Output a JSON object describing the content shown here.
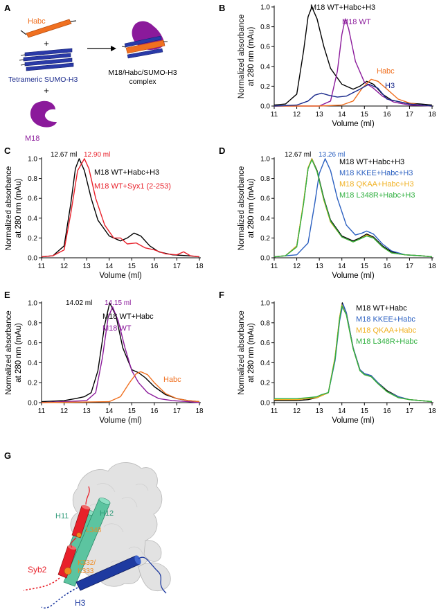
{
  "panel_a": {
    "label": "A",
    "habc": "Habc",
    "plus1": "+",
    "tetrameric": "Tetrameric SUMO-H3",
    "plus2": "+",
    "m18": "M18",
    "complex_line1": "M18/Habc/SUMO-H3",
    "complex_line2": "complex"
  },
  "panel_g": {
    "label": "G",
    "h11": "H11",
    "h12": "H12",
    "l348": "L348",
    "k332": "K332/",
    "k333": "K333",
    "syb2": "Syb2",
    "h3": "H3"
  },
  "colors": {
    "black": "#000000",
    "purple": "#8b1a9b",
    "orange": "#f07020",
    "navy": "#1a2a8c",
    "red": "#e8202a",
    "blue": "#2a5fc0",
    "yellow": "#f0b020",
    "green": "#30b040",
    "teal": "#5cc4a0",
    "darkred": "#c81818"
  },
  "chart_data": [
    {
      "panel": "B",
      "type": "line",
      "xlabel": "Volume (ml)",
      "ylabel_line1": "Normalized absorbance",
      "ylabel_line2": "at 280 nm (mAu)",
      "xlim": [
        11,
        18
      ],
      "ylim": [
        0,
        1.0
      ],
      "xticks": [
        "11",
        "12",
        "13",
        "14",
        "15",
        "16",
        "17",
        "18"
      ],
      "yticks": [
        "0.0",
        "0.2",
        "0.4",
        "0.6",
        "0.8",
        "1.0"
      ],
      "series": [
        {
          "name": "M18 WT+Habc+H3",
          "color": "#000000",
          "x": [
            11,
            11.5,
            12,
            12.3,
            12.5,
            12.67,
            12.9,
            13.2,
            13.5,
            14,
            14.5,
            14.8,
            15.1,
            15.4,
            15.8,
            16.2,
            16.8,
            17.5,
            18
          ],
          "y": [
            0.01,
            0.02,
            0.12,
            0.55,
            0.9,
            1.0,
            0.88,
            0.6,
            0.38,
            0.22,
            0.17,
            0.2,
            0.25,
            0.22,
            0.12,
            0.06,
            0.03,
            0.02,
            0.01
          ]
        },
        {
          "name": "M18 WT",
          "color": "#8b1a9b",
          "x": [
            11,
            13,
            13.5,
            13.8,
            14,
            14.15,
            14.3,
            14.6,
            15,
            15.4,
            15.8,
            16.3,
            17,
            18
          ],
          "y": [
            0,
            0,
            0.05,
            0.35,
            0.72,
            0.88,
            0.78,
            0.45,
            0.24,
            0.18,
            0.1,
            0.04,
            0.01,
            0
          ]
        },
        {
          "name": "Habc",
          "color": "#f07020",
          "x": [
            11,
            13,
            14,
            14.5,
            14.9,
            15.3,
            15.6,
            16,
            16.5,
            17,
            17.5,
            18
          ],
          "y": [
            0,
            0,
            0.01,
            0.05,
            0.18,
            0.27,
            0.25,
            0.17,
            0.07,
            0.03,
            0.01,
            0
          ]
        },
        {
          "name": "H3",
          "color": "#1a2a8c",
          "x": [
            11,
            12,
            12.5,
            12.8,
            13.1,
            13.4,
            13.8,
            14.2,
            14.8,
            15.2,
            15.6,
            16,
            17,
            18
          ],
          "y": [
            0,
            0.01,
            0.05,
            0.11,
            0.13,
            0.11,
            0.09,
            0.1,
            0.17,
            0.22,
            0.18,
            0.07,
            0.02,
            0
          ]
        }
      ],
      "legend": [
        {
          "text": "M18 WT+Habc+H3",
          "color": "#000000"
        },
        {
          "text": "M18 WT",
          "color": "#8b1a9b"
        },
        {
          "text": "Habc",
          "color": "#f07020"
        },
        {
          "text": "H3",
          "color": "#1a2a8c"
        }
      ]
    },
    {
      "panel": "C",
      "type": "line",
      "xlabel": "Volume (ml)",
      "ylabel_line1": "Normalized absorbance",
      "ylabel_line2": "at 280 nm (mAu)",
      "xlim": [
        11,
        18
      ],
      "ylim": [
        0,
        1.0
      ],
      "xticks": [
        "11",
        "12",
        "13",
        "14",
        "15",
        "16",
        "17",
        "18"
      ],
      "yticks": [
        "0.0",
        "0.2",
        "0.4",
        "0.6",
        "0.8",
        "1.0"
      ],
      "series": [
        {
          "name": "M18 WT+Habc+H3",
          "color": "#000000",
          "x": [
            11,
            11.5,
            12,
            12.3,
            12.5,
            12.67,
            12.9,
            13.2,
            13.5,
            14,
            14.5,
            14.8,
            15.1,
            15.4,
            15.8,
            16.2,
            16.8,
            17.5,
            18
          ],
          "y": [
            0.01,
            0.02,
            0.12,
            0.55,
            0.9,
            1.0,
            0.88,
            0.6,
            0.38,
            0.22,
            0.17,
            0.2,
            0.25,
            0.22,
            0.12,
            0.06,
            0.03,
            0.02,
            0.01
          ]
        },
        {
          "name": "M18 WT+Syx1 (2-253)",
          "color": "#e8202a",
          "x": [
            11,
            11.5,
            12,
            12.3,
            12.6,
            12.9,
            13.1,
            13.4,
            13.8,
            14.2,
            14.5,
            14.8,
            15.2,
            15.6,
            16,
            16.5,
            17,
            17.3,
            17.6,
            18
          ],
          "y": [
            0.01,
            0.02,
            0.08,
            0.45,
            0.88,
            1.0,
            0.9,
            0.6,
            0.33,
            0.2,
            0.2,
            0.14,
            0.15,
            0.1,
            0.08,
            0.04,
            0.03,
            0.06,
            0.02,
            0.01
          ]
        }
      ],
      "peak_labels": [
        {
          "text": "12.67 ml",
          "color": "#000000"
        },
        {
          "text": "12.90 ml",
          "color": "#e8202a"
        }
      ],
      "legend": [
        {
          "text": "M18 WT+Habc+H3",
          "color": "#000000"
        },
        {
          "text": "M18 WT+Syx1 (2-253)",
          "color": "#e8202a"
        }
      ]
    },
    {
      "panel": "D",
      "type": "line",
      "xlabel": "Volume (ml)",
      "ylabel_line1": "Normalized absorbance",
      "ylabel_line2": "at 280 nm (mAu)",
      "xlim": [
        11,
        18
      ],
      "ylim": [
        0,
        1.0
      ],
      "xticks": [
        "11",
        "12",
        "13",
        "14",
        "15",
        "16",
        "17",
        "18"
      ],
      "yticks": [
        "0.0",
        "0.2",
        "0.4",
        "0.6",
        "0.8",
        "1.0"
      ],
      "series": [
        {
          "name": "M18 WT+Habc+H3",
          "color": "#000000",
          "x": [
            11,
            11.5,
            12,
            12.3,
            12.5,
            12.67,
            12.9,
            13.2,
            13.5,
            14,
            14.5,
            14.8,
            15.1,
            15.4,
            15.8,
            16.2,
            16.8,
            17.5,
            18
          ],
          "y": [
            0.01,
            0.02,
            0.12,
            0.55,
            0.9,
            1.0,
            0.88,
            0.6,
            0.38,
            0.22,
            0.17,
            0.2,
            0.24,
            0.21,
            0.12,
            0.06,
            0.03,
            0.02,
            0.01
          ]
        },
        {
          "name": "M18 KKEE+Habc+H3",
          "color": "#2a5fc0",
          "x": [
            11,
            12,
            12.5,
            12.8,
            13.0,
            13.26,
            13.5,
            13.8,
            14.2,
            14.6,
            14.9,
            15.1,
            15.4,
            15.8,
            16.2,
            16.8,
            17.5,
            18
          ],
          "y": [
            0.01,
            0.03,
            0.15,
            0.55,
            0.85,
            1.0,
            0.88,
            0.6,
            0.33,
            0.23,
            0.25,
            0.27,
            0.24,
            0.14,
            0.07,
            0.03,
            0.02,
            0.01
          ]
        },
        {
          "name": "M18 QKAA+Habc+H3",
          "color": "#f0b020",
          "x": [
            11,
            11.5,
            12,
            12.3,
            12.5,
            12.67,
            12.9,
            13.2,
            13.5,
            14,
            14.5,
            14.8,
            15.1,
            15.4,
            15.8,
            16.2,
            16.8,
            17.5,
            18
          ],
          "y": [
            0.01,
            0.02,
            0.12,
            0.56,
            0.91,
            1.0,
            0.87,
            0.58,
            0.36,
            0.21,
            0.16,
            0.19,
            0.23,
            0.2,
            0.11,
            0.05,
            0.03,
            0.02,
            0.01
          ]
        },
        {
          "name": "M18 L348R+Habc+H3",
          "color": "#30b040",
          "x": [
            11,
            11.5,
            12,
            12.3,
            12.5,
            12.67,
            12.9,
            13.2,
            13.5,
            14,
            14.5,
            14.8,
            15.1,
            15.4,
            15.8,
            16.2,
            16.8,
            17.5,
            18
          ],
          "y": [
            0.01,
            0.02,
            0.11,
            0.54,
            0.9,
            0.99,
            0.87,
            0.59,
            0.37,
            0.21,
            0.16,
            0.19,
            0.22,
            0.2,
            0.11,
            0.05,
            0.03,
            0.02,
            0.01
          ]
        }
      ],
      "peak_labels": [
        {
          "text": "12.67 ml",
          "color": "#000000"
        },
        {
          "text": "13.26 ml",
          "color": "#2a5fc0"
        }
      ],
      "legend": [
        {
          "text": "M18 WT+Habc+H3",
          "color": "#000000"
        },
        {
          "text": "M18 KKEE+Habc+H3",
          "color": "#2a5fc0"
        },
        {
          "text": "M18 QKAA+Habc+H3",
          "color": "#f0b020"
        },
        {
          "text": "M18 L348R+Habc+H3",
          "color": "#30b040"
        }
      ]
    },
    {
      "panel": "E",
      "type": "line",
      "xlabel": "Volume (ml)",
      "ylabel_line1": "Normalized absorbance",
      "ylabel_line2": "at 280 nm (mAu)",
      "xlim": [
        11,
        18
      ],
      "ylim": [
        0,
        1.0
      ],
      "xticks": [
        "11",
        "12",
        "13",
        "14",
        "15",
        "16",
        "17",
        "18"
      ],
      "yticks": [
        "0.0",
        "0.2",
        "0.4",
        "0.6",
        "0.8",
        "1.0"
      ],
      "series": [
        {
          "name": "M18 WT+Habc",
          "color": "#000000",
          "x": [
            11,
            12,
            12.5,
            12.9,
            13.2,
            13.5,
            13.8,
            14.02,
            14.3,
            14.6,
            15,
            15.3,
            15.6,
            16,
            16.5,
            17,
            17.5,
            18
          ],
          "y": [
            0.01,
            0.02,
            0.04,
            0.06,
            0.1,
            0.32,
            0.78,
            1.0,
            0.87,
            0.55,
            0.33,
            0.3,
            0.25,
            0.16,
            0.08,
            0.04,
            0.02,
            0.01
          ]
        },
        {
          "name": "M18 WT",
          "color": "#8b1a9b",
          "x": [
            11,
            13,
            13.4,
            13.7,
            13.95,
            14.15,
            14.4,
            14.7,
            15,
            15.3,
            15.7,
            16.2,
            16.8,
            17.5,
            18
          ],
          "y": [
            0,
            0.02,
            0.1,
            0.45,
            0.85,
            0.96,
            0.82,
            0.55,
            0.32,
            0.2,
            0.1,
            0.04,
            0.02,
            0.01,
            0
          ]
        },
        {
          "name": "Habc",
          "color": "#f07020",
          "x": [
            11,
            14,
            14.5,
            14.9,
            15.2,
            15.4,
            15.7,
            16,
            16.5,
            17,
            17.5,
            18
          ],
          "y": [
            0,
            0.01,
            0.06,
            0.2,
            0.29,
            0.31,
            0.28,
            0.2,
            0.09,
            0.04,
            0.02,
            0.01
          ]
        }
      ],
      "peak_labels": [
        {
          "text": "14.02  ml",
          "color": "#000000"
        },
        {
          "text": "14.15  ml",
          "color": "#8b1a9b"
        }
      ],
      "legend": [
        {
          "text": "M18 WT+Habc",
          "color": "#000000"
        },
        {
          "text": "M18 WT",
          "color": "#8b1a9b"
        },
        {
          "text": "Habc",
          "color": "#f07020"
        }
      ]
    },
    {
      "panel": "F",
      "type": "line",
      "xlabel": "Volume (ml)",
      "ylabel_line1": "Normalized absorbance",
      "ylabel_line2": "at 280 nm (mAu)",
      "xlim": [
        11,
        18
      ],
      "ylim": [
        0,
        1.0
      ],
      "xticks": [
        "11",
        "12",
        "13",
        "14",
        "15",
        "16",
        "17",
        "18"
      ],
      "yticks": [
        "0.0",
        "0.2",
        "0.4",
        "0.6",
        "0.8",
        "1.0"
      ],
      "series": [
        {
          "name": "M18 WT+Habc",
          "color": "#000000",
          "x": [
            11,
            12,
            12.5,
            12.9,
            13.1,
            13.4,
            13.7,
            13.9,
            14.02,
            14.2,
            14.5,
            14.8,
            15,
            15.3,
            15.6,
            16,
            16.5,
            17,
            17.5,
            18
          ],
          "y": [
            0.02,
            0.02,
            0.03,
            0.05,
            0.07,
            0.1,
            0.45,
            0.85,
            1.0,
            0.9,
            0.55,
            0.33,
            0.29,
            0.27,
            0.2,
            0.12,
            0.06,
            0.03,
            0.02,
            0.01
          ]
        },
        {
          "name": "M18 KKEE+Habc",
          "color": "#2a5fc0",
          "x": [
            11,
            12,
            12.5,
            12.9,
            13.1,
            13.4,
            13.7,
            13.9,
            14.05,
            14.2,
            14.5,
            14.8,
            15,
            15.3,
            15.6,
            16,
            16.5,
            17,
            17.5,
            18
          ],
          "y": [
            0.03,
            0.03,
            0.04,
            0.06,
            0.08,
            0.1,
            0.42,
            0.82,
            0.99,
            0.9,
            0.55,
            0.33,
            0.29,
            0.27,
            0.2,
            0.11,
            0.06,
            0.03,
            0.02,
            0.01
          ]
        },
        {
          "name": "M18 QKAA+Habc",
          "color": "#f0b020",
          "x": [
            11,
            12,
            12.5,
            12.9,
            13.1,
            13.4,
            13.7,
            13.9,
            14.0,
            14.2,
            14.5,
            14.8,
            15,
            15.3,
            15.6,
            16,
            16.5,
            17,
            17.5,
            18
          ],
          "y": [
            0.03,
            0.03,
            0.04,
            0.05,
            0.07,
            0.1,
            0.46,
            0.86,
            0.98,
            0.88,
            0.54,
            0.32,
            0.28,
            0.26,
            0.19,
            0.11,
            0.05,
            0.03,
            0.02,
            0.01
          ]
        },
        {
          "name": "M18 L348R+Habc",
          "color": "#30b040",
          "x": [
            11,
            12,
            12.5,
            12.9,
            13.1,
            13.4,
            13.7,
            13.9,
            14.0,
            14.2,
            14.5,
            14.8,
            15,
            15.3,
            15.6,
            16,
            16.5,
            17,
            17.5,
            18
          ],
          "y": [
            0.04,
            0.04,
            0.05,
            0.06,
            0.08,
            0.1,
            0.44,
            0.84,
            0.97,
            0.88,
            0.54,
            0.32,
            0.28,
            0.26,
            0.19,
            0.11,
            0.05,
            0.03,
            0.02,
            0.01
          ]
        }
      ],
      "legend": [
        {
          "text": "M18 WT+Habc",
          "color": "#000000"
        },
        {
          "text": "M18 KKEE+Habc",
          "color": "#2a5fc0"
        },
        {
          "text": "M18 QKAA+Habc",
          "color": "#f0b020"
        },
        {
          "text": "M18 L348R+Habc",
          "color": "#30b040"
        }
      ]
    }
  ]
}
